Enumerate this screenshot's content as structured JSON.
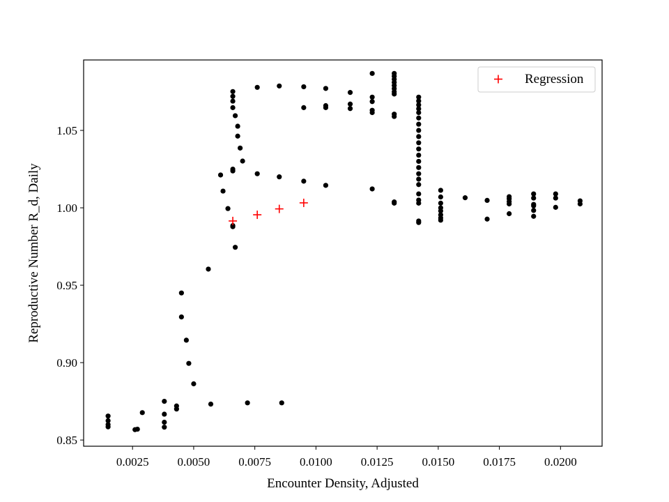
{
  "chart_data": {
    "type": "scatter",
    "title": "",
    "xlabel": "Encounter Density, Adjusted",
    "ylabel": "Reproductive Number R_d, Daily",
    "xlim": [
      0.0005,
      0.0217
    ],
    "ylim": [
      0.846,
      1.0955
    ],
    "xticks": [
      0.0025,
      0.005,
      0.0075,
      0.01,
      0.0125,
      0.015,
      0.0175,
      0.02
    ],
    "xtick_labels": [
      "0.0025",
      "0.0050",
      "0.0075",
      "0.0100",
      "0.0125",
      "0.0150",
      "0.0175",
      "0.0200"
    ],
    "yticks": [
      0.85,
      0.9,
      0.95,
      1.0,
      1.05
    ],
    "ytick_labels": [
      "0.85",
      "0.90",
      "0.95",
      "1.00",
      "1.05"
    ],
    "grid": false,
    "legend": {
      "position": "top-right",
      "entries": [
        "Regression"
      ]
    },
    "series": [
      {
        "name": "",
        "marker": "circle",
        "color": "#000000",
        "points": [
          [
            0.0015,
            0.8655
          ],
          [
            0.0015,
            0.8625
          ],
          [
            0.0015,
            0.86
          ],
          [
            0.0015,
            0.8585
          ],
          [
            0.0026,
            0.8567
          ],
          [
            0.0027,
            0.857
          ],
          [
            0.0029,
            0.8677
          ],
          [
            0.0038,
            0.875
          ],
          [
            0.0038,
            0.8667
          ],
          [
            0.0038,
            0.8615
          ],
          [
            0.0038,
            0.8583
          ],
          [
            0.0043,
            0.872
          ],
          [
            0.0043,
            0.87
          ],
          [
            0.0045,
            0.945
          ],
          [
            0.0045,
            0.9295
          ],
          [
            0.0047,
            0.9145
          ],
          [
            0.0048,
            0.8995
          ],
          [
            0.005,
            0.8863
          ],
          [
            0.0057,
            0.8732
          ],
          [
            0.0072,
            0.874
          ],
          [
            0.0086,
            0.874
          ],
          [
            0.0056,
            0.9604
          ],
          [
            0.0061,
            1.0212
          ],
          [
            0.0062,
            1.0108
          ],
          [
            0.0064,
            0.9995
          ],
          [
            0.0066,
            0.9878
          ],
          [
            0.0066,
            0.9885
          ],
          [
            0.0066,
            1.0238
          ],
          [
            0.0066,
            1.025
          ],
          [
            0.0066,
            1.0647
          ],
          [
            0.0066,
            1.0689
          ],
          [
            0.0066,
            1.072
          ],
          [
            0.0066,
            1.0751
          ],
          [
            0.0067,
            0.9745
          ],
          [
            0.0067,
            1.0595
          ],
          [
            0.0068,
            1.0527
          ],
          [
            0.0068,
            1.0463
          ],
          [
            0.0069,
            1.0386
          ],
          [
            0.007,
            1.0302
          ],
          [
            0.0076,
            1.022
          ],
          [
            0.0076,
            1.0778
          ],
          [
            0.0085,
            1.02
          ],
          [
            0.0085,
            1.0787
          ],
          [
            0.0095,
            1.0172
          ],
          [
            0.0095,
            1.0647
          ],
          [
            0.0095,
            1.0782
          ],
          [
            0.0104,
            1.0145
          ],
          [
            0.0104,
            1.0647
          ],
          [
            0.0104,
            1.066
          ],
          [
            0.0104,
            1.0771
          ],
          [
            0.0114,
            1.0641
          ],
          [
            0.0114,
            1.067
          ],
          [
            0.0114,
            1.0745
          ],
          [
            0.0123,
            1.0122
          ],
          [
            0.0123,
            1.0615
          ],
          [
            0.0123,
            1.063
          ],
          [
            0.0123,
            1.0686
          ],
          [
            0.0123,
            1.0715
          ],
          [
            0.0123,
            1.0868
          ],
          [
            0.0132,
            1.003
          ],
          [
            0.0132,
            1.0038
          ],
          [
            0.0132,
            1.059
          ],
          [
            0.0132,
            1.0605
          ],
          [
            0.0132,
            1.0735
          ],
          [
            0.0132,
            1.075
          ],
          [
            0.0132,
            1.077
          ],
          [
            0.0132,
            1.079
          ],
          [
            0.0132,
            1.081
          ],
          [
            0.0132,
            1.083
          ],
          [
            0.0132,
            1.085
          ],
          [
            0.0132,
            1.0868
          ],
          [
            0.0142,
            0.9905
          ],
          [
            0.0142,
            0.9915
          ],
          [
            0.0142,
            1.003
          ],
          [
            0.0142,
            1.005
          ],
          [
            0.0142,
            1.009
          ],
          [
            0.0142,
            1.015
          ],
          [
            0.0142,
            1.0185
          ],
          [
            0.0142,
            1.022
          ],
          [
            0.0142,
            1.026
          ],
          [
            0.0142,
            1.03
          ],
          [
            0.0142,
            1.034
          ],
          [
            0.0142,
            1.038
          ],
          [
            0.0142,
            1.042
          ],
          [
            0.0142,
            1.046
          ],
          [
            0.0142,
            1.05
          ],
          [
            0.0142,
            1.054
          ],
          [
            0.0142,
            1.058
          ],
          [
            0.0142,
            1.0615
          ],
          [
            0.0142,
            1.064
          ],
          [
            0.0142,
            1.0665
          ],
          [
            0.0142,
            1.069
          ],
          [
            0.0142,
            1.0715
          ],
          [
            0.0151,
            0.992
          ],
          [
            0.0151,
            0.9935
          ],
          [
            0.0151,
            0.9955
          ],
          [
            0.0151,
            0.998
          ],
          [
            0.0151,
            1.0
          ],
          [
            0.0151,
            1.003
          ],
          [
            0.0151,
            1.007
          ],
          [
            0.0151,
            1.0113
          ],
          [
            0.0161,
            1.0065
          ],
          [
            0.017,
            0.9927
          ],
          [
            0.017,
            1.0048
          ],
          [
            0.0179,
            0.9962
          ],
          [
            0.0179,
            1.0025
          ],
          [
            0.0179,
            1.004
          ],
          [
            0.0179,
            1.0058
          ],
          [
            0.0179,
            1.0072
          ],
          [
            0.0189,
            0.9945
          ],
          [
            0.0189,
            0.9983
          ],
          [
            0.0189,
            1.0013
          ],
          [
            0.0189,
            1.0022
          ],
          [
            0.0189,
            1.0063
          ],
          [
            0.0189,
            1.009
          ],
          [
            0.0198,
            1.0003
          ],
          [
            0.0198,
            1.0063
          ],
          [
            0.0198,
            1.009
          ],
          [
            0.0208,
            1.0025
          ],
          [
            0.0208,
            1.0045
          ]
        ]
      },
      {
        "name": "Regression",
        "marker": "plus",
        "color": "#ff0000",
        "points": [
          [
            0.0066,
            0.9915
          ],
          [
            0.0076,
            0.9955
          ],
          [
            0.0085,
            0.9993
          ],
          [
            0.0095,
            1.0032
          ]
        ]
      }
    ]
  }
}
